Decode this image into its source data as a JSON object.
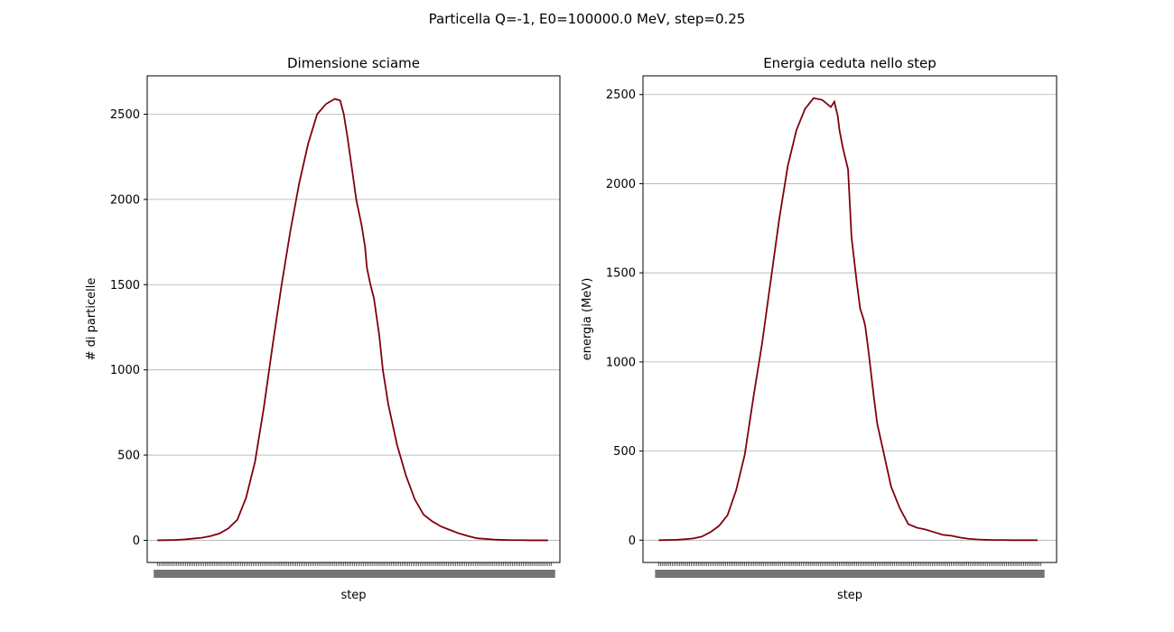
{
  "figure": {
    "suptitle": "Particella Q=-1, E0=100000.0 MeV, step=0.25"
  },
  "colors": {
    "line": "#800010",
    "grid": "#b0b0b0",
    "axes": "#000000"
  },
  "chart_data": [
    {
      "type": "line",
      "title": "Dimensione sciame",
      "xlabel": "step",
      "ylabel": "# di particelle",
      "xlim": [
        -4.7,
        227.7
      ],
      "ylim": [
        -130,
        2725
      ],
      "yticks": [
        0,
        500,
        1000,
        1500,
        2000,
        2500
      ],
      "ytick_labels": [
        "0",
        "500",
        "1000",
        "1500",
        "2000",
        "2500"
      ],
      "xtick_labels_note": "dense overlapping integer step labels",
      "grid": "y",
      "series": [
        {
          "x": [
            1,
            11,
            16,
            21,
            26,
            31,
            36,
            41,
            46,
            51,
            56,
            61,
            66,
            71,
            76,
            81,
            86,
            91,
            96,
            101,
            104,
            106,
            108,
            111,
            113,
            116,
            118,
            119,
            121,
            123,
            126,
            128,
            131,
            136,
            141,
            146,
            151,
            156,
            161,
            166,
            171,
            176,
            181,
            186,
            191,
            196,
            201,
            206,
            211,
            216,
            221
          ],
          "y": [
            0,
            2,
            5,
            10,
            15,
            25,
            40,
            70,
            120,
            250,
            460,
            780,
            1150,
            1500,
            1820,
            2100,
            2330,
            2500,
            2560,
            2590,
            2580,
            2500,
            2370,
            2150,
            2000,
            1850,
            1720,
            1600,
            1500,
            1420,
            1200,
            1000,
            800,
            560,
            380,
            240,
            150,
            110,
            80,
            60,
            40,
            25,
            12,
            8,
            4,
            2,
            1,
            1,
            0,
            0,
            0
          ]
        }
      ]
    },
    {
      "type": "line",
      "title": "Energia ceduta nello step",
      "xlabel": "step",
      "ylabel": "energia (MeV)",
      "xlim": [
        -8.1,
        232.1
      ],
      "ylim": [
        -125,
        2605
      ],
      "yticks": [
        0,
        500,
        1000,
        1500,
        2000,
        2500
      ],
      "ytick_labels": [
        "0",
        "500",
        "1000",
        "1500",
        "2000",
        "2500"
      ],
      "xtick_labels_note": "dense overlapping integer step labels",
      "grid": "y",
      "series": [
        {
          "x": [
            1,
            11,
            16,
            21,
            26,
            31,
            36,
            41,
            46,
            51,
            56,
            61,
            66,
            71,
            76,
            81,
            86,
            91,
            96,
            101,
            103,
            105,
            106,
            108,
            111,
            113,
            116,
            118,
            120,
            121,
            123,
            126,
            128,
            131,
            136,
            141,
            146,
            151,
            156,
            161,
            166,
            171,
            176,
            181,
            186,
            191,
            196,
            201,
            206,
            211,
            216,
            221
          ],
          "y": [
            0,
            2,
            5,
            10,
            20,
            45,
            80,
            140,
            280,
            480,
            800,
            1100,
            1450,
            1800,
            2100,
            2300,
            2420,
            2480,
            2470,
            2430,
            2460,
            2380,
            2300,
            2200,
            2080,
            1700,
            1450,
            1300,
            1240,
            1200,
            1050,
            800,
            650,
            520,
            300,
            180,
            90,
            70,
            60,
            45,
            30,
            25,
            15,
            8,
            4,
            2,
            1,
            1,
            0,
            0,
            0,
            0
          ]
        }
      ]
    }
  ]
}
